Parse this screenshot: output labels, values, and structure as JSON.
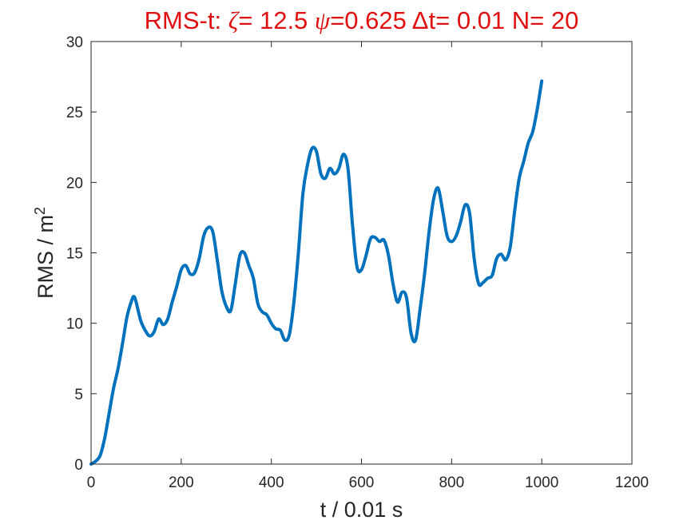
{
  "chart_data": {
    "type": "line",
    "title": {
      "prefix": "RMS-t:  ",
      "zeta_symbol": "ζ",
      "zeta_text": "= 12.5 ",
      "psi_symbol": "ψ",
      "psi_text": "=0.625 ",
      "delta_symbol": "Δ",
      "rest_text": "t= 0.01 N= 20"
    },
    "xlabel": "t / 0.01 s",
    "ylabel": "RMS / m",
    "ylabel_superscript": "2",
    "xlim": [
      0,
      1200
    ],
    "ylim": [
      0,
      30
    ],
    "xticks": [
      "0",
      "200",
      "400",
      "600",
      "800",
      "1000",
      "1200"
    ],
    "yticks": [
      "0",
      "5",
      "10",
      "15",
      "20",
      "25",
      "30"
    ],
    "grid": false,
    "line_color": "#0072bd",
    "series": [
      {
        "x": [
          0,
          10,
          20,
          30,
          40,
          50,
          60,
          70,
          80,
          90,
          95,
          100,
          110,
          120,
          130,
          140,
          150,
          160,
          170,
          180,
          190,
          200,
          210,
          220,
          230,
          240,
          250,
          260,
          270,
          280,
          290,
          300,
          310,
          320,
          330,
          340,
          350,
          360,
          370,
          380,
          390,
          400,
          410,
          420,
          430,
          440,
          450,
          460,
          470,
          480,
          490,
          500,
          510,
          520,
          530,
          540,
          550,
          560,
          570,
          580,
          590,
          600,
          610,
          620,
          630,
          640,
          650,
          660,
          670,
          680,
          690,
          700,
          710,
          720,
          730,
          740,
          750,
          760,
          770,
          780,
          790,
          800,
          810,
          820,
          830,
          840,
          850,
          860,
          870,
          880,
          890,
          900,
          910,
          920,
          930,
          940,
          950,
          960,
          970,
          980,
          990,
          1000
        ],
        "y": [
          0,
          0.2,
          0.6,
          1.8,
          3.6,
          5.4,
          6.8,
          8.6,
          10.5,
          11.6,
          11.9,
          11.5,
          10.2,
          9.5,
          9.1,
          9.4,
          10.3,
          9.9,
          10.3,
          11.5,
          12.6,
          13.8,
          14.1,
          13.5,
          13.6,
          14.6,
          16.2,
          16.8,
          16.5,
          14.5,
          12.3,
          11.2,
          10.9,
          12.8,
          14.8,
          15.0,
          14.1,
          13.2,
          11.4,
          10.8,
          10.6,
          10.0,
          9.6,
          9.5,
          8.8,
          9.2,
          11.5,
          15.0,
          19.2,
          21.2,
          22.4,
          22.2,
          20.6,
          20.3,
          21.0,
          20.6,
          21.0,
          22.0,
          21.0,
          17.0,
          14.0,
          13.8,
          14.8,
          16.0,
          16.1,
          15.8,
          15.9,
          14.8,
          12.8,
          11.5,
          12.2,
          11.8,
          9.3,
          8.8,
          11.0,
          13.5,
          16.5,
          18.8,
          19.6,
          18.0,
          16.2,
          15.8,
          16.2,
          17.2,
          18.4,
          17.8,
          14.6,
          12.8,
          12.9,
          13.2,
          13.4,
          14.6,
          14.9,
          14.5,
          15.4,
          18.0,
          20.3,
          21.5,
          22.8,
          23.6,
          25.2,
          27.2
        ]
      }
    ]
  }
}
